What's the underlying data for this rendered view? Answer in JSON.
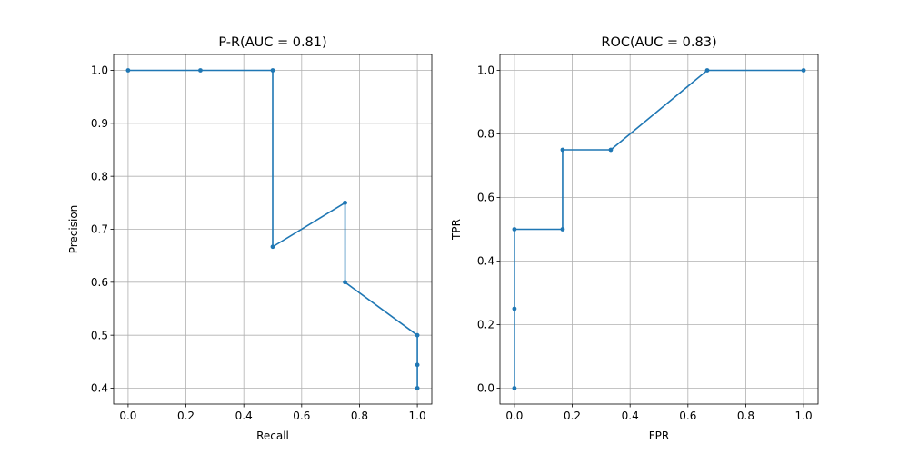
{
  "colors": {
    "series": "#1f77b4",
    "grid": "#b0b0b0",
    "axis": "#000000",
    "background": "#ffffff"
  },
  "chart_data": [
    {
      "type": "line",
      "title": "P-R(AUC = 0.81)",
      "xlabel": "Recall",
      "ylabel": "Precision",
      "xlim": [
        -0.05,
        1.05
      ],
      "ylim": [
        0.37,
        1.03
      ],
      "xticks": [
        0.0,
        0.2,
        0.4,
        0.6,
        0.8,
        1.0
      ],
      "xtick_labels": [
        "0.0",
        "0.2",
        "0.4",
        "0.6",
        "0.8",
        "1.0"
      ],
      "yticks": [
        0.4,
        0.5,
        0.6,
        0.7,
        0.8,
        0.9,
        1.0
      ],
      "ytick_labels": [
        "0.4",
        "0.5",
        "0.6",
        "0.7",
        "0.8",
        "0.9",
        "1.0"
      ],
      "grid": true,
      "marker": "circle",
      "series": [
        {
          "x": [
            0.0,
            0.25,
            0.5,
            0.5,
            0.75,
            0.75,
            1.0,
            1.0,
            1.0
          ],
          "y": [
            1.0,
            1.0,
            1.0,
            0.667,
            0.75,
            0.6,
            0.5,
            0.444,
            0.4
          ]
        }
      ]
    },
    {
      "type": "line",
      "title": "ROC(AUC = 0.83)",
      "xlabel": "FPR",
      "ylabel": "TPR",
      "xlim": [
        -0.05,
        1.05
      ],
      "ylim": [
        -0.05,
        1.05
      ],
      "xticks": [
        0.0,
        0.2,
        0.4,
        0.6,
        0.8,
        1.0
      ],
      "xtick_labels": [
        "0.0",
        "0.2",
        "0.4",
        "0.6",
        "0.8",
        "1.0"
      ],
      "yticks": [
        0.0,
        0.2,
        0.4,
        0.6,
        0.8,
        1.0
      ],
      "ytick_labels": [
        "0.0",
        "0.2",
        "0.4",
        "0.6",
        "0.8",
        "1.0"
      ],
      "grid": true,
      "marker": "circle",
      "series": [
        {
          "x": [
            0.0,
            0.0,
            0.0,
            0.1667,
            0.1667,
            0.3333,
            0.6667,
            1.0
          ],
          "y": [
            0.0,
            0.25,
            0.5,
            0.5,
            0.75,
            0.75,
            1.0,
            1.0
          ]
        }
      ]
    }
  ]
}
